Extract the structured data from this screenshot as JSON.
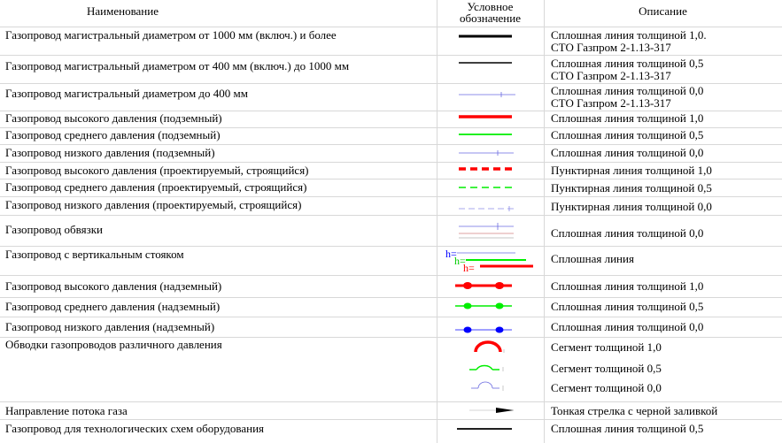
{
  "header": {
    "name": "Наименование",
    "symbol_line1": "Условное",
    "symbol_line2": "обозначение",
    "description": "Описание"
  },
  "rows": [
    {
      "name": "Газопровод магистральный диаметром от 1000 мм (включ.) и более",
      "desc1": "Сплошная линия толщиной 1,0.",
      "desc2": "СТО Газпром 2-1.13-317"
    },
    {
      "name": "Газопровод магистральный диаметром от 400 мм (включ.) до 1000 мм",
      "desc1": "Сплошная линия толщиной 0,5",
      "desc2": "СТО Газпром 2-1.13-317"
    },
    {
      "name": "Газопровод магистральный диаметром до 400 мм",
      "desc1": "Сплошная линия толщиной 0,0",
      "desc2": "СТО Газпром 2-1.13-317"
    },
    {
      "name": "Газопровод высокого давления (подземный)",
      "desc1": "Сплошная линия толщиной 1,0"
    },
    {
      "name": "Газопровод среднего давления (подземный)",
      "desc1": "Сплошная линия толщиной 0,5"
    },
    {
      "name": "Газопровод низкого давления (подземный)",
      "desc1": "Сплошная линия толщиной 0,0"
    },
    {
      "name": "Газопровод высокого давления (проектируемый, строящийся)",
      "desc1": "Пунктирная линия толщиной 1,0"
    },
    {
      "name": "Газопровод среднего давления (проектируемый, строящийся)",
      "desc1": "Пунктирная линия толщиной 0,5"
    },
    {
      "name": "Газопровод низкого давления (проектируемый, строящийся)",
      "desc1": "Пунктирная линия толщиной 0,0"
    },
    {
      "name": "Газопровод обвязки",
      "desc1": "Сплошная линия толщиной 0,0"
    },
    {
      "name": "Газопровод с вертикальным стояком",
      "desc1": "Сплошная линия",
      "sym_label": "h="
    },
    {
      "name": "Газопровод высокого давления (надземный)",
      "desc1": "Сплошная линия толщиной 1,0"
    },
    {
      "name": "Газопровод среднего давления (надземный)",
      "desc1": "Сплошная линия толщиной 0,5"
    },
    {
      "name": "Газопровод низкого давления (надземный)",
      "desc1": "Сплошная линия толщиной 0,0"
    },
    {
      "name": "Обводки газопроводов различного давления",
      "desc1": "Сегмент толщиной 1,0",
      "desc2": "Сегмент толщиной 0,5",
      "desc3": "Сегмент толщиной 0,0"
    },
    {
      "name": "Направление потока газа",
      "desc1": "Тонкая стрелка с черной заливкой"
    },
    {
      "name": "Газопровод для технологических схем оборудования",
      "desc1": "Сплошная линия толщиной 0,5"
    }
  ],
  "colors": {
    "high": "#ff0000",
    "medium": "#00ee00",
    "low": "#0000ff",
    "black": "#000000",
    "grid": "#d8d8d8"
  }
}
